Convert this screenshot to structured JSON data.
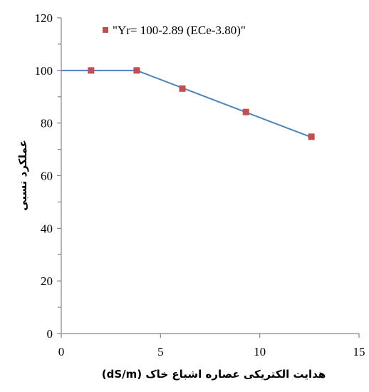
{
  "chart_data": {
    "type": "line",
    "xlabel": "هدایت الکتریکی عصاره اشباع خاک (dS/m)",
    "ylabel": "عملکرد نسبی",
    "xlim": [
      0,
      15
    ],
    "ylim": [
      0,
      120
    ],
    "x_ticks": [
      "0",
      "5",
      "10",
      "15"
    ],
    "y_ticks": [
      "0",
      "20",
      "40",
      "60",
      "80",
      "100",
      "120"
    ],
    "grid": false,
    "legend_position": "top",
    "series": [
      {
        "name": "\"Yr= 100-2.89 (ECe-3.80)\"",
        "color": "#c0504d",
        "line_color": "#4f81bd",
        "marker": "square",
        "line_x": [
          0,
          3.8,
          12.6
        ],
        "line_y": [
          100,
          100,
          74.6
        ],
        "points": [
          {
            "x": 1.5,
            "y": 100
          },
          {
            "x": 3.8,
            "y": 100
          },
          {
            "x": 6.1,
            "y": 93.1
          },
          {
            "x": 9.3,
            "y": 84.2
          },
          {
            "x": 12.6,
            "y": 74.8
          }
        ]
      }
    ]
  }
}
